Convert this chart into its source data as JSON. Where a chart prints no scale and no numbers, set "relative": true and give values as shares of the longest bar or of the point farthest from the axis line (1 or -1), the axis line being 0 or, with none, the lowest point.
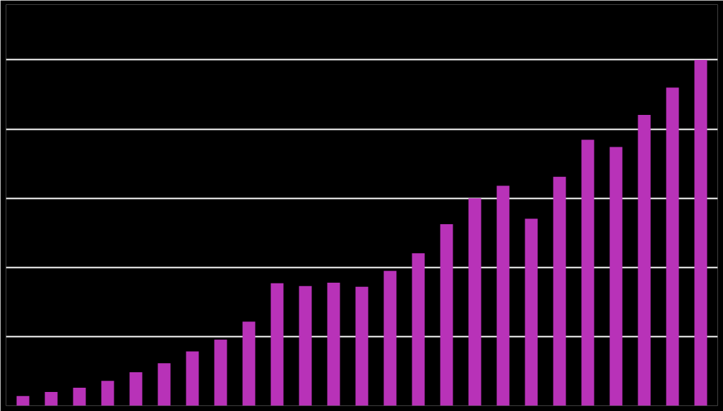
{
  "chart_data": {
    "type": "bar",
    "relative": true,
    "grid": "y",
    "color": "#b832b8",
    "categories": [
      null,
      null,
      null,
      null,
      null,
      null,
      null,
      null,
      null,
      null,
      null,
      null,
      null,
      null,
      null,
      null,
      null,
      null,
      null,
      null,
      null,
      null,
      null,
      null,
      null
    ],
    "values": [
      0.028,
      0.04,
      0.052,
      0.072,
      0.097,
      0.123,
      0.157,
      0.191,
      0.243,
      0.354,
      0.346,
      0.356,
      0.344,
      0.39,
      0.441,
      0.525,
      0.6,
      0.636,
      0.541,
      0.662,
      0.769,
      0.748,
      0.841,
      0.92,
      1.0
    ]
  }
}
